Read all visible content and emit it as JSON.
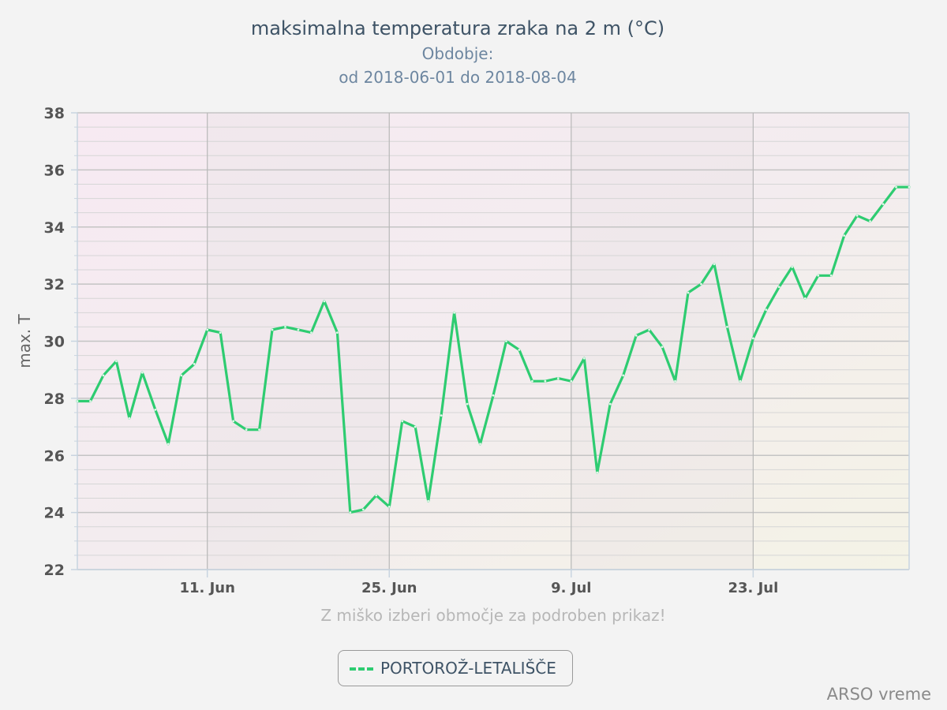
{
  "chart_data": {
    "type": "line",
    "title": "maksimalna temperatura zraka na 2 m (°C)",
    "subtitle_line1": "Obdobje:",
    "subtitle_line2": "od 2018-06-01 do 2018-08-04",
    "ylabel": "max. T",
    "ylim": [
      22,
      38
    ],
    "yticks": [
      22,
      24,
      26,
      28,
      30,
      32,
      34,
      36,
      38
    ],
    "xlim": [
      "2018-06-01",
      "2018-08-04"
    ],
    "xticks": [
      {
        "date": "2018-06-11",
        "label": "11. Jun"
      },
      {
        "date": "2018-06-25",
        "label": "25. Jun"
      },
      {
        "date": "2018-07-09",
        "label": "9. Jul"
      },
      {
        "date": "2018-07-23",
        "label": "23. Jul"
      }
    ],
    "grid": true,
    "legend_placement": "bottom",
    "series": [
      {
        "name": "PORTOROŽ-LETALIŠČE",
        "color": "#2ecc71",
        "x": [
          "2018-06-01",
          "2018-06-02",
          "2018-06-03",
          "2018-06-04",
          "2018-06-05",
          "2018-06-06",
          "2018-06-07",
          "2018-06-08",
          "2018-06-09",
          "2018-06-10",
          "2018-06-11",
          "2018-06-12",
          "2018-06-13",
          "2018-06-14",
          "2018-06-15",
          "2018-06-16",
          "2018-06-17",
          "2018-06-18",
          "2018-06-19",
          "2018-06-20",
          "2018-06-21",
          "2018-06-22",
          "2018-06-23",
          "2018-06-24",
          "2018-06-25",
          "2018-06-26",
          "2018-06-27",
          "2018-06-28",
          "2018-06-29",
          "2018-06-30",
          "2018-07-01",
          "2018-07-02",
          "2018-07-03",
          "2018-07-04",
          "2018-07-05",
          "2018-07-06",
          "2018-07-07",
          "2018-07-08",
          "2018-07-09",
          "2018-07-10",
          "2018-07-11",
          "2018-07-12",
          "2018-07-13",
          "2018-07-14",
          "2018-07-15",
          "2018-07-16",
          "2018-07-17",
          "2018-07-18",
          "2018-07-19",
          "2018-07-20",
          "2018-07-21",
          "2018-07-22",
          "2018-07-23",
          "2018-07-24",
          "2018-07-25",
          "2018-07-26",
          "2018-07-27",
          "2018-07-28",
          "2018-07-29",
          "2018-07-30",
          "2018-07-31",
          "2018-08-01",
          "2018-08-02",
          "2018-08-03",
          "2018-08-04"
        ],
        "values": [
          27.9,
          27.9,
          28.8,
          29.3,
          27.3,
          28.9,
          27.6,
          26.4,
          28.8,
          29.2,
          30.4,
          30.3,
          27.2,
          26.9,
          26.9,
          30.4,
          30.5,
          30.4,
          30.3,
          31.4,
          30.3,
          24.0,
          24.1,
          24.6,
          24.2,
          27.2,
          27.0,
          24.4,
          27.4,
          31.0,
          27.8,
          26.4,
          28.1,
          30.0,
          29.7,
          28.6,
          28.6,
          28.7,
          28.6,
          29.4,
          25.4,
          27.8,
          28.8,
          30.2,
          30.4,
          29.8,
          28.6,
          31.7,
          32.0,
          32.7,
          30.5,
          28.6,
          30.1,
          31.1,
          31.9,
          32.6,
          31.5,
          32.3,
          32.3,
          33.7,
          34.4,
          34.2,
          34.8,
          35.4,
          35.4
        ]
      }
    ]
  },
  "hint": "Z miško izberi območje za podroben prikaz!",
  "credit": "ARSO vreme"
}
